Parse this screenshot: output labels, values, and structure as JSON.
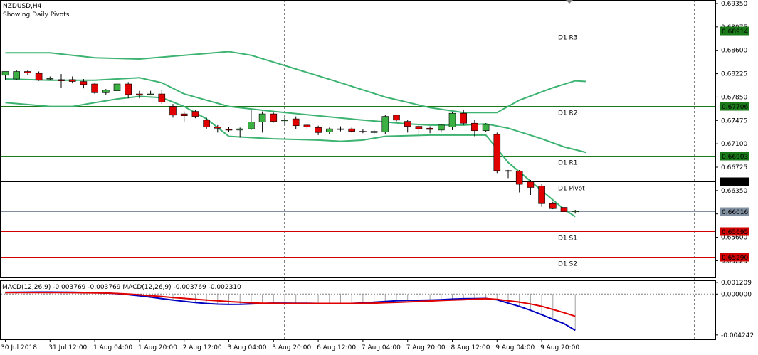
{
  "header": {
    "symbol": "NZDUSD,H4",
    "subtitle": "Showing Daily Pivots."
  },
  "colors": {
    "bull": "#3cb043",
    "bear": "#e00000",
    "bands": "#3cb371",
    "pivot": "#000000",
    "resistance": "#1a7a1a",
    "support": "#d00000",
    "current": "#8090a0",
    "macd_main": "#0000c0",
    "macd_signal": "#e00000",
    "histogram": "#a0a0a0",
    "grid": "#000000"
  },
  "price_axis": {
    "ticks": [
      "0.69350",
      "0.68975",
      "0.68600",
      "0.68225",
      "0.67850",
      "0.67475",
      "0.67100",
      "0.66725",
      "0.66350",
      "0.65975",
      "0.65600",
      "0.65225"
    ]
  },
  "levels": [
    {
      "name": "D1 R3",
      "value": "0.68914",
      "kind": "resistance"
    },
    {
      "name": "D1 R2",
      "value": "0.67706",
      "kind": "resistance"
    },
    {
      "name": "D1 R1",
      "value": "0.66903",
      "kind": "resistance"
    },
    {
      "name": "D1 Pivot",
      "value": "0.66498",
      "kind": "pivot"
    },
    {
      "name": "",
      "value": "0.66016",
      "kind": "current"
    },
    {
      "name": "D1 S1",
      "value": "0.65695",
      "kind": "support"
    },
    {
      "name": "D1 S2",
      "value": "0.65290",
      "kind": "support"
    }
  ],
  "time_axis": {
    "ticks": [
      "30 Jul 2018",
      "31 Jul 12:00",
      "1 Aug 04:00",
      "1 Aug 20:00",
      "2 Aug 12:00",
      "3 Aug 04:00",
      "3 Aug 20:00",
      "6 Aug 12:00",
      "7 Aug 04:00",
      "7 Aug 20:00",
      "8 Aug 12:00",
      "9 Aug 04:00",
      "9 Aug 20:00"
    ]
  },
  "macd": {
    "title": "MACD(12,26,9) -0.003769 -0.003769 MACD(12,26,9) -0.003769 -0.002310",
    "ticks": [
      "0.001209",
      "0.000000",
      "-0.004242"
    ]
  },
  "chart_data": [
    {
      "type": "candlestick",
      "title": "NZDUSD,H4",
      "subtitle": "Showing Daily Pivots.",
      "ylim": [
        0.6507,
        0.6935
      ],
      "candles": [
        {
          "o": 0.682,
          "h": 0.6825,
          "l": 0.6813,
          "c": 0.6826
        },
        {
          "o": 0.6814,
          "h": 0.6828,
          "l": 0.6812,
          "c": 0.6826
        },
        {
          "o": 0.6826,
          "h": 0.6828,
          "l": 0.682,
          "c": 0.6824
        },
        {
          "o": 0.6823,
          "h": 0.6826,
          "l": 0.6811,
          "c": 0.6812
        },
        {
          "o": 0.6815,
          "h": 0.6818,
          "l": 0.6812,
          "c": 0.6815
        },
        {
          "o": 0.6813,
          "h": 0.6822,
          "l": 0.68,
          "c": 0.6811
        },
        {
          "o": 0.6813,
          "h": 0.6818,
          "l": 0.6807,
          "c": 0.681
        },
        {
          "o": 0.681,
          "h": 0.6814,
          "l": 0.6799,
          "c": 0.6805
        },
        {
          "o": 0.6806,
          "h": 0.6808,
          "l": 0.679,
          "c": 0.6792
        },
        {
          "o": 0.6792,
          "h": 0.6798,
          "l": 0.6788,
          "c": 0.6796
        },
        {
          "o": 0.6795,
          "h": 0.6808,
          "l": 0.6792,
          "c": 0.6806
        },
        {
          "o": 0.6806,
          "h": 0.6809,
          "l": 0.6783,
          "c": 0.6789
        },
        {
          "o": 0.679,
          "h": 0.6795,
          "l": 0.6783,
          "c": 0.6788
        },
        {
          "o": 0.6789,
          "h": 0.6795,
          "l": 0.6788,
          "c": 0.679
        },
        {
          "o": 0.679,
          "h": 0.6797,
          "l": 0.6774,
          "c": 0.6777
        },
        {
          "o": 0.677,
          "h": 0.6774,
          "l": 0.6752,
          "c": 0.6756
        },
        {
          "o": 0.6758,
          "h": 0.6762,
          "l": 0.6745,
          "c": 0.6755
        },
        {
          "o": 0.6762,
          "h": 0.6765,
          "l": 0.6751,
          "c": 0.6754
        },
        {
          "o": 0.6748,
          "h": 0.6752,
          "l": 0.6733,
          "c": 0.6737
        },
        {
          "o": 0.6737,
          "h": 0.674,
          "l": 0.6728,
          "c": 0.6735
        },
        {
          "o": 0.6733,
          "h": 0.6737,
          "l": 0.6729,
          "c": 0.6732
        },
        {
          "o": 0.6732,
          "h": 0.6736,
          "l": 0.672,
          "c": 0.6734
        },
        {
          "o": 0.6734,
          "h": 0.6765,
          "l": 0.6732,
          "c": 0.6745
        },
        {
          "o": 0.6745,
          "h": 0.6762,
          "l": 0.6728,
          "c": 0.6758
        },
        {
          "o": 0.6758,
          "h": 0.676,
          "l": 0.6744,
          "c": 0.6746
        },
        {
          "o": 0.6747,
          "h": 0.6752,
          "l": 0.6741,
          "c": 0.6748
        },
        {
          "o": 0.675,
          "h": 0.6754,
          "l": 0.6734,
          "c": 0.6739
        },
        {
          "o": 0.674,
          "h": 0.6742,
          "l": 0.6734,
          "c": 0.6737
        },
        {
          "o": 0.6736,
          "h": 0.6739,
          "l": 0.6724,
          "c": 0.6728
        },
        {
          "o": 0.6729,
          "h": 0.6736,
          "l": 0.6726,
          "c": 0.6734
        },
        {
          "o": 0.6734,
          "h": 0.6738,
          "l": 0.673,
          "c": 0.6733
        },
        {
          "o": 0.6734,
          "h": 0.6736,
          "l": 0.6728,
          "c": 0.673
        },
        {
          "o": 0.673,
          "h": 0.6734,
          "l": 0.6727,
          "c": 0.6729
        },
        {
          "o": 0.6728,
          "h": 0.6733,
          "l": 0.6725,
          "c": 0.673
        },
        {
          "o": 0.6729,
          "h": 0.6756,
          "l": 0.6725,
          "c": 0.6754
        },
        {
          "o": 0.6756,
          "h": 0.6757,
          "l": 0.6746,
          "c": 0.6748
        },
        {
          "o": 0.6746,
          "h": 0.6748,
          "l": 0.6728,
          "c": 0.6738
        },
        {
          "o": 0.6738,
          "h": 0.674,
          "l": 0.6726,
          "c": 0.6734
        },
        {
          "o": 0.6735,
          "h": 0.6738,
          "l": 0.6727,
          "c": 0.6733
        },
        {
          "o": 0.6732,
          "h": 0.6742,
          "l": 0.6728,
          "c": 0.674
        },
        {
          "o": 0.6737,
          "h": 0.6761,
          "l": 0.6732,
          "c": 0.6759
        },
        {
          "o": 0.6759,
          "h": 0.6765,
          "l": 0.674,
          "c": 0.6743
        },
        {
          "o": 0.6743,
          "h": 0.6748,
          "l": 0.6722,
          "c": 0.6731
        },
        {
          "o": 0.6731,
          "h": 0.6743,
          "l": 0.6729,
          "c": 0.6741
        },
        {
          "o": 0.6725,
          "h": 0.6728,
          "l": 0.6663,
          "c": 0.6667
        },
        {
          "o": 0.6667,
          "h": 0.6668,
          "l": 0.6655,
          "c": 0.6666
        },
        {
          "o": 0.6666,
          "h": 0.6668,
          "l": 0.6632,
          "c": 0.6645
        },
        {
          "o": 0.6649,
          "h": 0.6652,
          "l": 0.6628,
          "c": 0.664
        },
        {
          "o": 0.6642,
          "h": 0.6645,
          "l": 0.6609,
          "c": 0.6614
        },
        {
          "o": 0.6614,
          "h": 0.6617,
          "l": 0.6605,
          "c": 0.6606
        },
        {
          "o": 0.6608,
          "h": 0.662,
          "l": 0.66,
          "c": 0.6601
        },
        {
          "o": 0.6602,
          "h": 0.6604,
          "l": 0.6598,
          "c": 0.6602
        }
      ],
      "bollinger": {
        "upper": [
          [
            0,
            0.6856
          ],
          [
            4,
            0.6856
          ],
          [
            8,
            0.6848
          ],
          [
            12,
            0.6846
          ],
          [
            16,
            0.6852
          ],
          [
            20,
            0.6858
          ],
          [
            22,
            0.6852
          ],
          [
            26,
            0.683
          ],
          [
            30,
            0.6808
          ],
          [
            34,
            0.6785
          ],
          [
            38,
            0.6768
          ],
          [
            41,
            0.676
          ],
          [
            42,
            0.676
          ],
          [
            44,
            0.676
          ],
          [
            46,
            0.678
          ],
          [
            49,
            0.68
          ],
          [
            51,
            0.6811
          ],
          [
            52,
            0.681
          ]
        ],
        "middle": [
          [
            0,
            0.6814
          ],
          [
            4,
            0.6812
          ],
          [
            8,
            0.6812
          ],
          [
            12,
            0.6816
          ],
          [
            14,
            0.6808
          ],
          [
            16,
            0.679
          ],
          [
            18,
            0.678
          ],
          [
            20,
            0.677
          ],
          [
            24,
            0.6762
          ],
          [
            28,
            0.6755
          ],
          [
            32,
            0.6748
          ],
          [
            36,
            0.6742
          ],
          [
            38,
            0.674
          ],
          [
            41,
            0.674
          ],
          [
            43,
            0.6742
          ],
          [
            45,
            0.6735
          ],
          [
            48,
            0.6718
          ],
          [
            50,
            0.6705
          ],
          [
            52,
            0.6696
          ]
        ],
        "lower": [
          [
            0,
            0.6776
          ],
          [
            4,
            0.677
          ],
          [
            6,
            0.677
          ],
          [
            8,
            0.6776
          ],
          [
            10,
            0.6782
          ],
          [
            12,
            0.6786
          ],
          [
            14,
            0.6784
          ],
          [
            16,
            0.677
          ],
          [
            18,
            0.675
          ],
          [
            20,
            0.6722
          ],
          [
            24,
            0.6718
          ],
          [
            28,
            0.6716
          ],
          [
            30,
            0.6714
          ],
          [
            32,
            0.6716
          ],
          [
            34,
            0.6722
          ],
          [
            38,
            0.6724
          ],
          [
            41,
            0.6724
          ],
          [
            43,
            0.6724
          ],
          [
            45,
            0.668
          ],
          [
            47,
            0.665
          ],
          [
            49,
            0.662
          ],
          [
            50,
            0.6605
          ],
          [
            51,
            0.6593
          ]
        ]
      }
    },
    {
      "type": "line",
      "title": "MACD(12,26,9) -0.003769 -0.003769 MACD(12,26,9) -0.003769 -0.002310",
      "ylim": [
        -0.00455,
        0.00135
      ],
      "series": [
        {
          "name": "MACD",
          "values": [
            0.00018,
            0.00019,
            0.0002,
            0.00021,
            0.00021,
            0.0002,
            0.00019,
            0.00017,
            0.00014,
            0.0001,
            4e-05,
            -6e-05,
            -0.00018,
            -0.00032,
            -0.00047,
            -0.00062,
            -0.00076,
            -0.00088,
            -0.00098,
            -0.00105,
            -0.00108,
            -0.00107,
            -0.00103,
            -0.00098,
            -0.00094,
            -0.00094,
            -0.00095,
            -0.00096,
            -0.00097,
            -0.00098,
            -0.00098,
            -0.00097,
            -0.00093,
            -0.00085,
            -0.00077,
            -0.00069,
            -0.00065,
            -0.00064,
            -0.00062,
            -0.00058,
            -0.00052,
            -0.00049,
            -0.00047,
            -0.00046,
            -0.0006,
            -0.00094,
            -0.00128,
            -0.00169,
            -0.00214,
            -0.00262,
            -0.00307,
            -0.00377
          ]
        },
        {
          "name": "Signal",
          "values": [
            0.00015,
            0.00015,
            0.00015,
            0.00015,
            0.00015,
            0.00015,
            0.00014,
            0.00013,
            0.00012,
            0.0001,
            6e-05,
            0,
            -8e-05,
            -0.00017,
            -0.00026,
            -0.00036,
            -0.00045,
            -0.00054,
            -0.00062,
            -0.0007,
            -0.00078,
            -0.00085,
            -0.00091,
            -0.00096,
            -0.00096,
            -0.00097,
            -0.00097,
            -0.00097,
            -0.00097,
            -0.00097,
            -0.00097,
            -0.00097,
            -0.00096,
            -0.00094,
            -0.0009,
            -0.00086,
            -0.00082,
            -0.00077,
            -0.00072,
            -0.00067,
            -0.00062,
            -0.00058,
            -0.00053,
            -0.00048,
            -0.00055,
            -0.00069,
            -0.00083,
            -0.00103,
            -0.00127,
            -0.0016,
            -0.00194,
            -0.00231
          ]
        }
      ]
    }
  ]
}
